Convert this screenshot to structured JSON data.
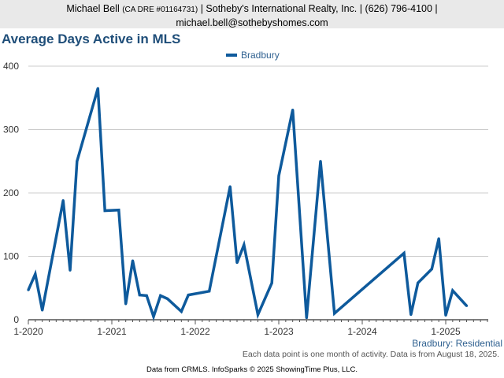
{
  "header": {
    "line1_name": "Michael Bell",
    "line1_dre": "(CA DRE #01164731)",
    "line1_rest": "| Sotheby's International Realty, Inc. | (626) 796-4100 |",
    "line2": "michael.bell@sothebyshomes.com"
  },
  "chart_data": {
    "type": "line",
    "title": "Average Days Active in MLS",
    "region_label": "Bradbury: Residential",
    "note": "Each data point is one month of activity. Data is from August 18, 2025.",
    "credit": "Data from CRMLS. InfoSparks © 2025 ShowingTime Plus, LLC.",
    "legend_position": "top-center",
    "grid": true,
    "ylim": [
      0,
      400
    ],
    "y_ticks": [
      "0",
      "100",
      "200",
      "300",
      "400"
    ],
    "x_ticks": [
      "1-2020",
      "1-2021",
      "1-2022",
      "1-2023",
      "1-2024",
      "1-2025"
    ],
    "colors": {
      "series": "#0e5a9c",
      "grid": "#cccccc",
      "axis": "#555555"
    },
    "series": [
      {
        "name": "Bradbury",
        "points": [
          {
            "x": "2020-01",
            "y": 47
          },
          {
            "x": "2020-02",
            "y": 72
          },
          {
            "x": "2020-03",
            "y": 15
          },
          {
            "x": "2020-06",
            "y": 188
          },
          {
            "x": "2020-07",
            "y": 78
          },
          {
            "x": "2020-08",
            "y": 250
          },
          {
            "x": "2020-11",
            "y": 365
          },
          {
            "x": "2020-12",
            "y": 172
          },
          {
            "x": "2021-02",
            "y": 173
          },
          {
            "x": "2021-03",
            "y": 25
          },
          {
            "x": "2021-04",
            "y": 93
          },
          {
            "x": "2021-05",
            "y": 39
          },
          {
            "x": "2021-06",
            "y": 38
          },
          {
            "x": "2021-07",
            "y": 5
          },
          {
            "x": "2021-08",
            "y": 38
          },
          {
            "x": "2021-09",
            "y": 33
          },
          {
            "x": "2021-11",
            "y": 13
          },
          {
            "x": "2021-12",
            "y": 39
          },
          {
            "x": "2022-03",
            "y": 45
          },
          {
            "x": "2022-06",
            "y": 210
          },
          {
            "x": "2022-07",
            "y": 90
          },
          {
            "x": "2022-08",
            "y": 118
          },
          {
            "x": "2022-10",
            "y": 8
          },
          {
            "x": "2022-12",
            "y": 58
          },
          {
            "x": "2023-01",
            "y": 227
          },
          {
            "x": "2023-03",
            "y": 331
          },
          {
            "x": "2023-05",
            "y": 3
          },
          {
            "x": "2023-07",
            "y": 250
          },
          {
            "x": "2023-09",
            "y": 10
          },
          {
            "x": "2024-07",
            "y": 105
          },
          {
            "x": "2024-08",
            "y": 8
          },
          {
            "x": "2024-09",
            "y": 58
          },
          {
            "x": "2024-11",
            "y": 80
          },
          {
            "x": "2024-12",
            "y": 128
          },
          {
            "x": "2025-01",
            "y": 7
          },
          {
            "x": "2025-02",
            "y": 46
          },
          {
            "x": "2025-04",
            "y": 22
          }
        ]
      }
    ]
  }
}
